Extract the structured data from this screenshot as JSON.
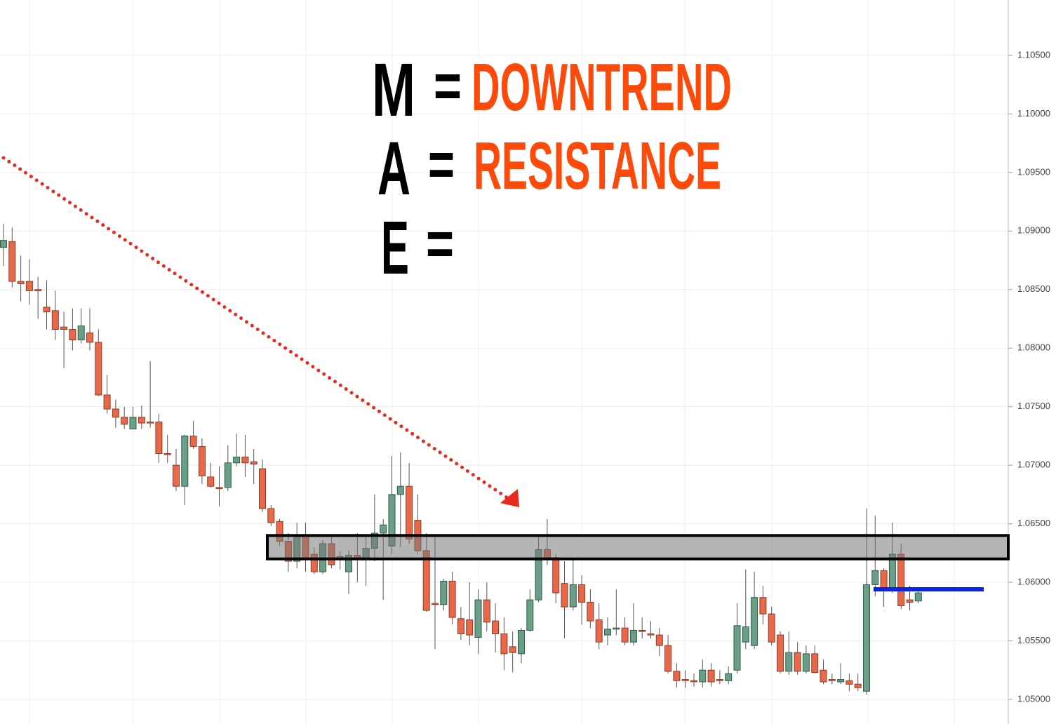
{
  "chart_data": {
    "type": "candlestick",
    "open": [
      1.0886,
      1.0891,
      1.0857,
      1.0857,
      1.085,
      1.0835,
      1.0832,
      1.0818,
      1.0816,
      1.0807,
      1.0813,
      1.0805,
      1.076,
      1.0748,
      1.0741,
      1.0731,
      1.0741,
      1.0737,
      1.0737,
      1.071,
      1.07,
      1.0682,
      1.0725,
      1.0716,
      1.069,
      1.0681,
      1.0681,
      1.0702,
      1.0707,
      1.0703,
      1.0697,
      1.0663,
      1.0652,
      1.0635,
      1.0618,
      1.0639,
      1.0624,
      1.0609,
      1.0633,
      1.0622,
      1.0609,
      1.0623,
      1.062,
      1.0629,
      1.0642,
      1.0631,
      1.0675,
      1.0682,
      1.0653,
      1.0627,
      1.0582,
      1.0581,
      1.0601,
      1.0569,
      1.0568,
      1.0553,
      1.0585,
      1.0567,
      1.0556,
      1.0545,
      1.0539,
      1.0559,
      1.0585,
      1.0628,
      1.0621,
      1.0599,
      1.0579,
      1.0598,
      1.0583,
      1.0568,
      1.0555,
      1.056,
      1.0561,
      1.0549,
      1.0559,
      1.0556,
      1.0555,
      1.0546,
      1.0524,
      1.0517,
      1.0516,
      1.0515,
      1.0525,
      1.0517,
      1.0516,
      1.0525,
      1.0549,
      1.0546,
      1.0587,
      1.0573,
      1.0555,
      1.0524,
      1.054,
      1.0524,
      1.0539,
      1.0525,
      1.0517,
      1.0515,
      1.0516,
      1.0513,
      1.0507,
      1.0598,
      1.061,
      1.0595,
      1.0624,
      1.0585,
      1.0584
    ],
    "high": [
      1.0906,
      1.0903,
      1.0879,
      1.0876,
      1.0861,
      1.0858,
      1.0849,
      1.0831,
      1.0834,
      1.0834,
      1.0834,
      1.0816,
      1.0777,
      1.0756,
      1.075,
      1.075,
      1.0751,
      1.0789,
      1.0744,
      1.0726,
      1.0714,
      1.0726,
      1.0738,
      1.0723,
      1.0702,
      1.0699,
      1.0717,
      1.0727,
      1.0726,
      1.0714,
      1.0705,
      1.0666,
      1.0654,
      1.0642,
      1.0651,
      1.0651,
      1.063,
      1.0636,
      1.0639,
      1.0627,
      1.0627,
      1.0642,
      1.0639,
      1.0675,
      1.0654,
      1.0708,
      1.0711,
      1.0702,
      1.0675,
      1.0642,
      1.0639,
      1.0603,
      1.0609,
      1.0579,
      1.06,
      1.0594,
      1.06,
      1.0582,
      1.057,
      1.0558,
      1.0561,
      1.0594,
      1.0639,
      1.0654,
      1.0624,
      1.0618,
      1.0621,
      1.0606,
      1.0594,
      1.0582,
      1.057,
      1.0594,
      1.057,
      1.0582,
      1.057,
      1.0567,
      1.0561,
      1.0555,
      1.0531,
      1.0525,
      1.0522,
      1.0534,
      1.0531,
      1.0525,
      1.0528,
      1.0582,
      1.0611,
      1.0609,
      1.0597,
      1.0579,
      1.0558,
      1.0558,
      1.0549,
      1.0546,
      1.0546,
      1.0534,
      1.0522,
      1.0531,
      1.0522,
      1.0522,
      1.0663,
      1.0657,
      1.0612,
      1.0651,
      1.0633,
      1.0597,
      1.0594
    ],
    "low": [
      1.087,
      1.0852,
      1.084,
      1.0837,
      1.0825,
      1.0816,
      1.0807,
      1.0783,
      1.0798,
      1.0804,
      1.0798,
      1.0759,
      1.0744,
      1.0732,
      1.0731,
      1.0731,
      1.0731,
      1.0732,
      1.0702,
      1.0702,
      1.0678,
      1.0666,
      1.0714,
      1.0684,
      1.0681,
      1.0665,
      1.0678,
      1.0699,
      1.069,
      1.0684,
      1.066,
      1.0648,
      1.0631,
      1.0609,
      1.0612,
      1.0609,
      1.0607,
      1.0607,
      1.0612,
      1.0611,
      1.059,
      1.06,
      1.0597,
      1.0618,
      1.0585,
      1.0624,
      1.063,
      1.0633,
      1.0624,
      1.0575,
      1.0543,
      1.0576,
      1.0564,
      1.0551,
      1.0546,
      1.0539,
      1.0558,
      1.054,
      1.0525,
      1.0523,
      1.0531,
      1.0558,
      1.0583,
      1.0615,
      1.0582,
      1.0552,
      1.0576,
      1.0564,
      1.0561,
      1.0543,
      1.0546,
      1.0555,
      1.0546,
      1.0546,
      1.0552,
      1.0552,
      1.0537,
      1.0522,
      1.051,
      1.051,
      1.0511,
      1.051,
      1.0511,
      1.0513,
      1.0513,
      1.0522,
      1.0543,
      1.0543,
      1.0564,
      1.0546,
      1.0522,
      1.0521,
      1.0521,
      1.0522,
      1.0522,
      1.0513,
      1.0513,
      1.0513,
      1.0507,
      1.0507,
      1.0504,
      1.0588,
      1.0579,
      1.0591,
      1.0577,
      1.0576,
      1.0582
    ],
    "close": [
      1.0892,
      1.0857,
      1.0855,
      1.0849,
      1.0849,
      1.0831,
      1.0816,
      1.0816,
      1.0807,
      1.0819,
      1.0805,
      1.076,
      1.0748,
      1.0741,
      1.0735,
      1.0741,
      1.0736,
      1.0736,
      1.071,
      1.0709,
      1.0682,
      1.0725,
      1.0716,
      1.0691,
      1.0682,
      1.068,
      1.0702,
      1.0707,
      1.0702,
      1.0701,
      1.0663,
      1.0651,
      1.0635,
      1.0618,
      1.0639,
      1.0621,
      1.0609,
      1.0633,
      1.0615,
      1.062,
      1.0623,
      1.062,
      1.0629,
      1.0642,
      1.0649,
      1.0675,
      1.0682,
      1.0637,
      1.0627,
      1.0576,
      1.0581,
      1.0601,
      1.057,
      1.0556,
      1.0555,
      1.0585,
      1.0566,
      1.0556,
      1.0539,
      1.054,
      1.0559,
      1.0585,
      1.0628,
      1.0621,
      1.0591,
      1.0579,
      1.0598,
      1.0583,
      1.0567,
      1.0549,
      1.056,
      1.0561,
      1.0549,
      1.0559,
      1.0558,
      1.0555,
      1.0546,
      1.0524,
      1.0516,
      1.0516,
      1.0515,
      1.0525,
      1.0515,
      1.0516,
      1.0522,
      1.0563,
      1.0562,
      1.0587,
      1.0573,
      1.0549,
      1.0524,
      1.054,
      1.0524,
      1.0539,
      1.0523,
      1.0515,
      1.0516,
      1.0517,
      1.0513,
      1.051,
      1.0598,
      1.061,
      1.0595,
      1.0624,
      1.058,
      1.0583,
      1.0591
    ],
    "up_color": "#6b9e86",
    "down_color": "#e8694a",
    "ylim": [
      1.0479,
      1.10973
    ],
    "yticks": [
      {
        "value": 1.05,
        "label": "1.05000"
      },
      {
        "value": 1.055,
        "label": "1.05500"
      },
      {
        "value": 1.06,
        "label": "1.06000"
      },
      {
        "value": 1.065,
        "label": "1.06500"
      },
      {
        "value": 1.07,
        "label": "1.07000"
      },
      {
        "value": 1.075,
        "label": "1.07500"
      },
      {
        "value": 1.08,
        "label": "1.08000"
      },
      {
        "value": 1.085,
        "label": "1.08500"
      },
      {
        "value": 1.09,
        "label": "1.09000"
      },
      {
        "value": 1.095,
        "label": "1.09500"
      },
      {
        "value": 1.1,
        "label": "1.10000"
      },
      {
        "value": 1.105,
        "label": "1.10500"
      }
    ],
    "grid": true,
    "resistance_zone": [
      1.062,
      1.064
    ],
    "level": 1.0594,
    "level_color": "#0a24e6",
    "annotations": [
      {
        "label": "M",
        "equals": "=",
        "text": "DOWNTREND"
      },
      {
        "label": "A",
        "equals": "=",
        "text": "RESISTANCE"
      },
      {
        "label": "E",
        "equals": "="
      }
    ]
  }
}
